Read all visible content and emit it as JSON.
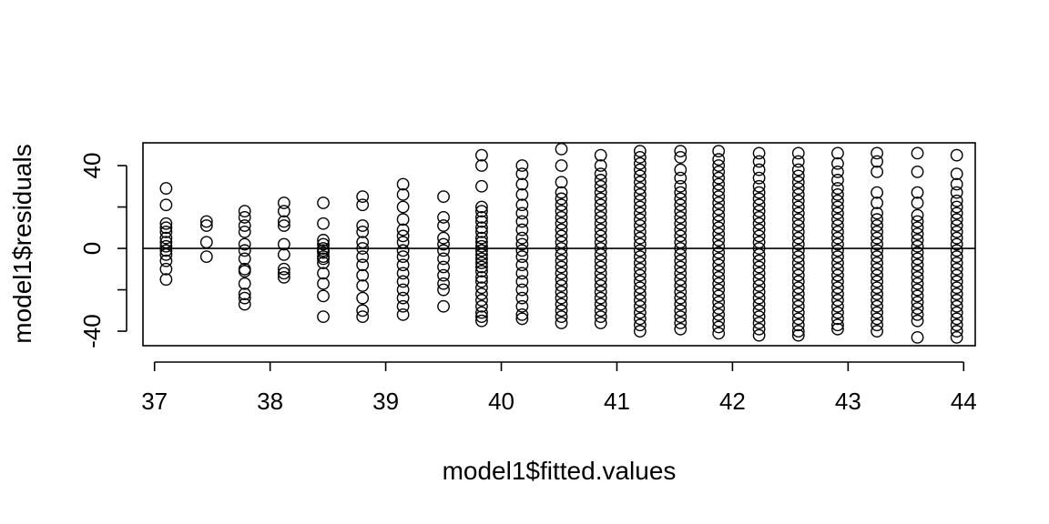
{
  "chart_data": {
    "type": "scatter",
    "title": "",
    "xlabel": "model1$fitted.values",
    "ylabel": "model1$residuals",
    "xlim": [
      36.9,
      44.1
    ],
    "ylim": [
      -47,
      51
    ],
    "xticks": [
      37,
      38,
      39,
      40,
      41,
      42,
      43,
      44
    ],
    "yticks": [
      -40,
      -20,
      0,
      20,
      40
    ],
    "yticks_labeled": [
      -40,
      0,
      40
    ],
    "reference_line": {
      "orientation": "horizontal",
      "y": 0
    },
    "grid": false,
    "legend": "none",
    "colors": {
      "points": "#000000",
      "background": "#ffffff"
    },
    "series": [
      {
        "x": 37.1,
        "residuals": [
          29,
          21,
          12,
          10,
          8,
          5,
          3,
          1,
          -1,
          -3,
          -6,
          -10,
          -15
        ]
      },
      {
        "x": 37.45,
        "residuals": [
          13,
          11,
          3,
          -4
        ]
      },
      {
        "x": 37.78,
        "residuals": [
          18,
          15,
          11,
          8,
          2,
          -1,
          -5,
          -10,
          -11,
          -17,
          -22,
          -24,
          -27
        ]
      },
      {
        "x": 38.12,
        "residuals": [
          22,
          18,
          13,
          11,
          2,
          -3,
          -10,
          -12,
          -14
        ]
      },
      {
        "x": 38.46,
        "residuals": [
          22,
          12,
          4,
          2,
          0,
          -1,
          -2,
          -4,
          -5,
          -7,
          -12,
          -17,
          -23,
          -33
        ]
      },
      {
        "x": 38.8,
        "residuals": [
          25,
          21,
          11,
          8,
          3,
          0,
          -4,
          -8,
          -13,
          -18,
          -24,
          -30,
          -33
        ]
      },
      {
        "x": 39.15,
        "residuals": [
          31,
          26,
          20,
          14,
          9,
          6,
          3,
          -1,
          -4,
          -8,
          -12,
          -16,
          -20,
          -24,
          -28,
          -32
        ]
      },
      {
        "x": 39.5,
        "residuals": [
          25,
          15,
          11,
          5,
          2,
          -1,
          -5,
          -9,
          -13,
          -17,
          -20,
          -28
        ]
      },
      {
        "x": 39.83,
        "residuals": [
          45,
          40,
          30,
          20,
          18,
          15,
          13,
          10,
          8,
          5,
          3,
          1,
          -1,
          -3,
          -5,
          -7,
          -9,
          -11,
          -14,
          -16,
          -19,
          -22,
          -25,
          -28,
          -31,
          -33,
          -35
        ]
      },
      {
        "x": 40.18,
        "residuals": [
          40,
          36,
          31,
          26,
          21,
          17,
          13,
          9,
          5,
          2,
          -1,
          -4,
          -8,
          -12,
          -16,
          -20,
          -24,
          -28,
          -32,
          -34
        ]
      },
      {
        "x": 40.52,
        "residuals": [
          48,
          40,
          32,
          27,
          24,
          21,
          18,
          15,
          12,
          9,
          6,
          3,
          0,
          -3,
          -6,
          -9,
          -12,
          -15,
          -18,
          -21,
          -24,
          -27,
          -30,
          -33,
          -36
        ]
      },
      {
        "x": 40.86,
        "residuals": [
          45,
          40,
          36,
          33,
          30,
          27,
          24,
          21,
          18,
          15,
          12,
          9,
          6,
          3,
          0,
          -3,
          -6,
          -9,
          -12,
          -15,
          -18,
          -21,
          -24,
          -27,
          -30,
          -33,
          -36
        ]
      },
      {
        "x": 41.2,
        "residuals": [
          47,
          44,
          41,
          38,
          35,
          32,
          29,
          26,
          23,
          20,
          17,
          14,
          11,
          8,
          5,
          2,
          -1,
          -4,
          -7,
          -10,
          -13,
          -16,
          -19,
          -22,
          -25,
          -28,
          -31,
          -34,
          -37,
          -40
        ]
      },
      {
        "x": 41.55,
        "residuals": [
          47,
          44,
          38,
          34,
          30,
          27,
          24,
          21,
          18,
          15,
          12,
          9,
          6,
          3,
          0,
          -3,
          -6,
          -9,
          -12,
          -15,
          -18,
          -21,
          -24,
          -27,
          -30,
          -33,
          -36,
          -39
        ]
      },
      {
        "x": 41.88,
        "residuals": [
          47,
          43,
          40,
          37,
          34,
          31,
          28,
          25,
          22,
          19,
          16,
          13,
          10,
          7,
          4,
          1,
          -2,
          -5,
          -8,
          -11,
          -14,
          -17,
          -20,
          -23,
          -26,
          -29,
          -32,
          -35,
          -38,
          -41
        ]
      },
      {
        "x": 42.23,
        "residuals": [
          46,
          42,
          38,
          34,
          30,
          27,
          24,
          21,
          18,
          15,
          12,
          9,
          6,
          3,
          0,
          -3,
          -6,
          -9,
          -12,
          -15,
          -18,
          -21,
          -24,
          -27,
          -30,
          -33,
          -36,
          -39,
          -42
        ]
      },
      {
        "x": 42.57,
        "residuals": [
          46,
          42,
          38,
          35,
          32,
          29,
          26,
          23,
          20,
          17,
          14,
          11,
          8,
          5,
          2,
          -1,
          -4,
          -7,
          -10,
          -13,
          -16,
          -19,
          -22,
          -25,
          -28,
          -31,
          -34,
          -37,
          -40,
          -42
        ]
      },
      {
        "x": 42.91,
        "residuals": [
          46,
          41,
          37,
          33,
          29,
          26,
          23,
          20,
          17,
          14,
          11,
          8,
          5,
          2,
          -1,
          -4,
          -7,
          -10,
          -13,
          -16,
          -19,
          -22,
          -25,
          -28,
          -31,
          -34,
          -37,
          -39
        ]
      },
      {
        "x": 43.25,
        "residuals": [
          46,
          42,
          37,
          27,
          22,
          17,
          14,
          11,
          8,
          5,
          2,
          -1,
          -4,
          -7,
          -10,
          -13,
          -16,
          -19,
          -22,
          -25,
          -28,
          -31,
          -34,
          -37,
          -40
        ]
      },
      {
        "x": 43.6,
        "residuals": [
          46,
          37,
          27,
          22,
          16,
          13,
          10,
          7,
          4,
          1,
          -2,
          -5,
          -8,
          -11,
          -14,
          -17,
          -20,
          -23,
          -26,
          -29,
          -32,
          -35,
          -43
        ]
      },
      {
        "x": 43.94,
        "residuals": [
          45,
          36,
          31,
          27,
          23,
          20,
          17,
          14,
          11,
          8,
          5,
          2,
          -1,
          -4,
          -7,
          -10,
          -13,
          -16,
          -19,
          -22,
          -25,
          -28,
          -31,
          -34,
          -37,
          -40,
          -43
        ]
      }
    ]
  }
}
